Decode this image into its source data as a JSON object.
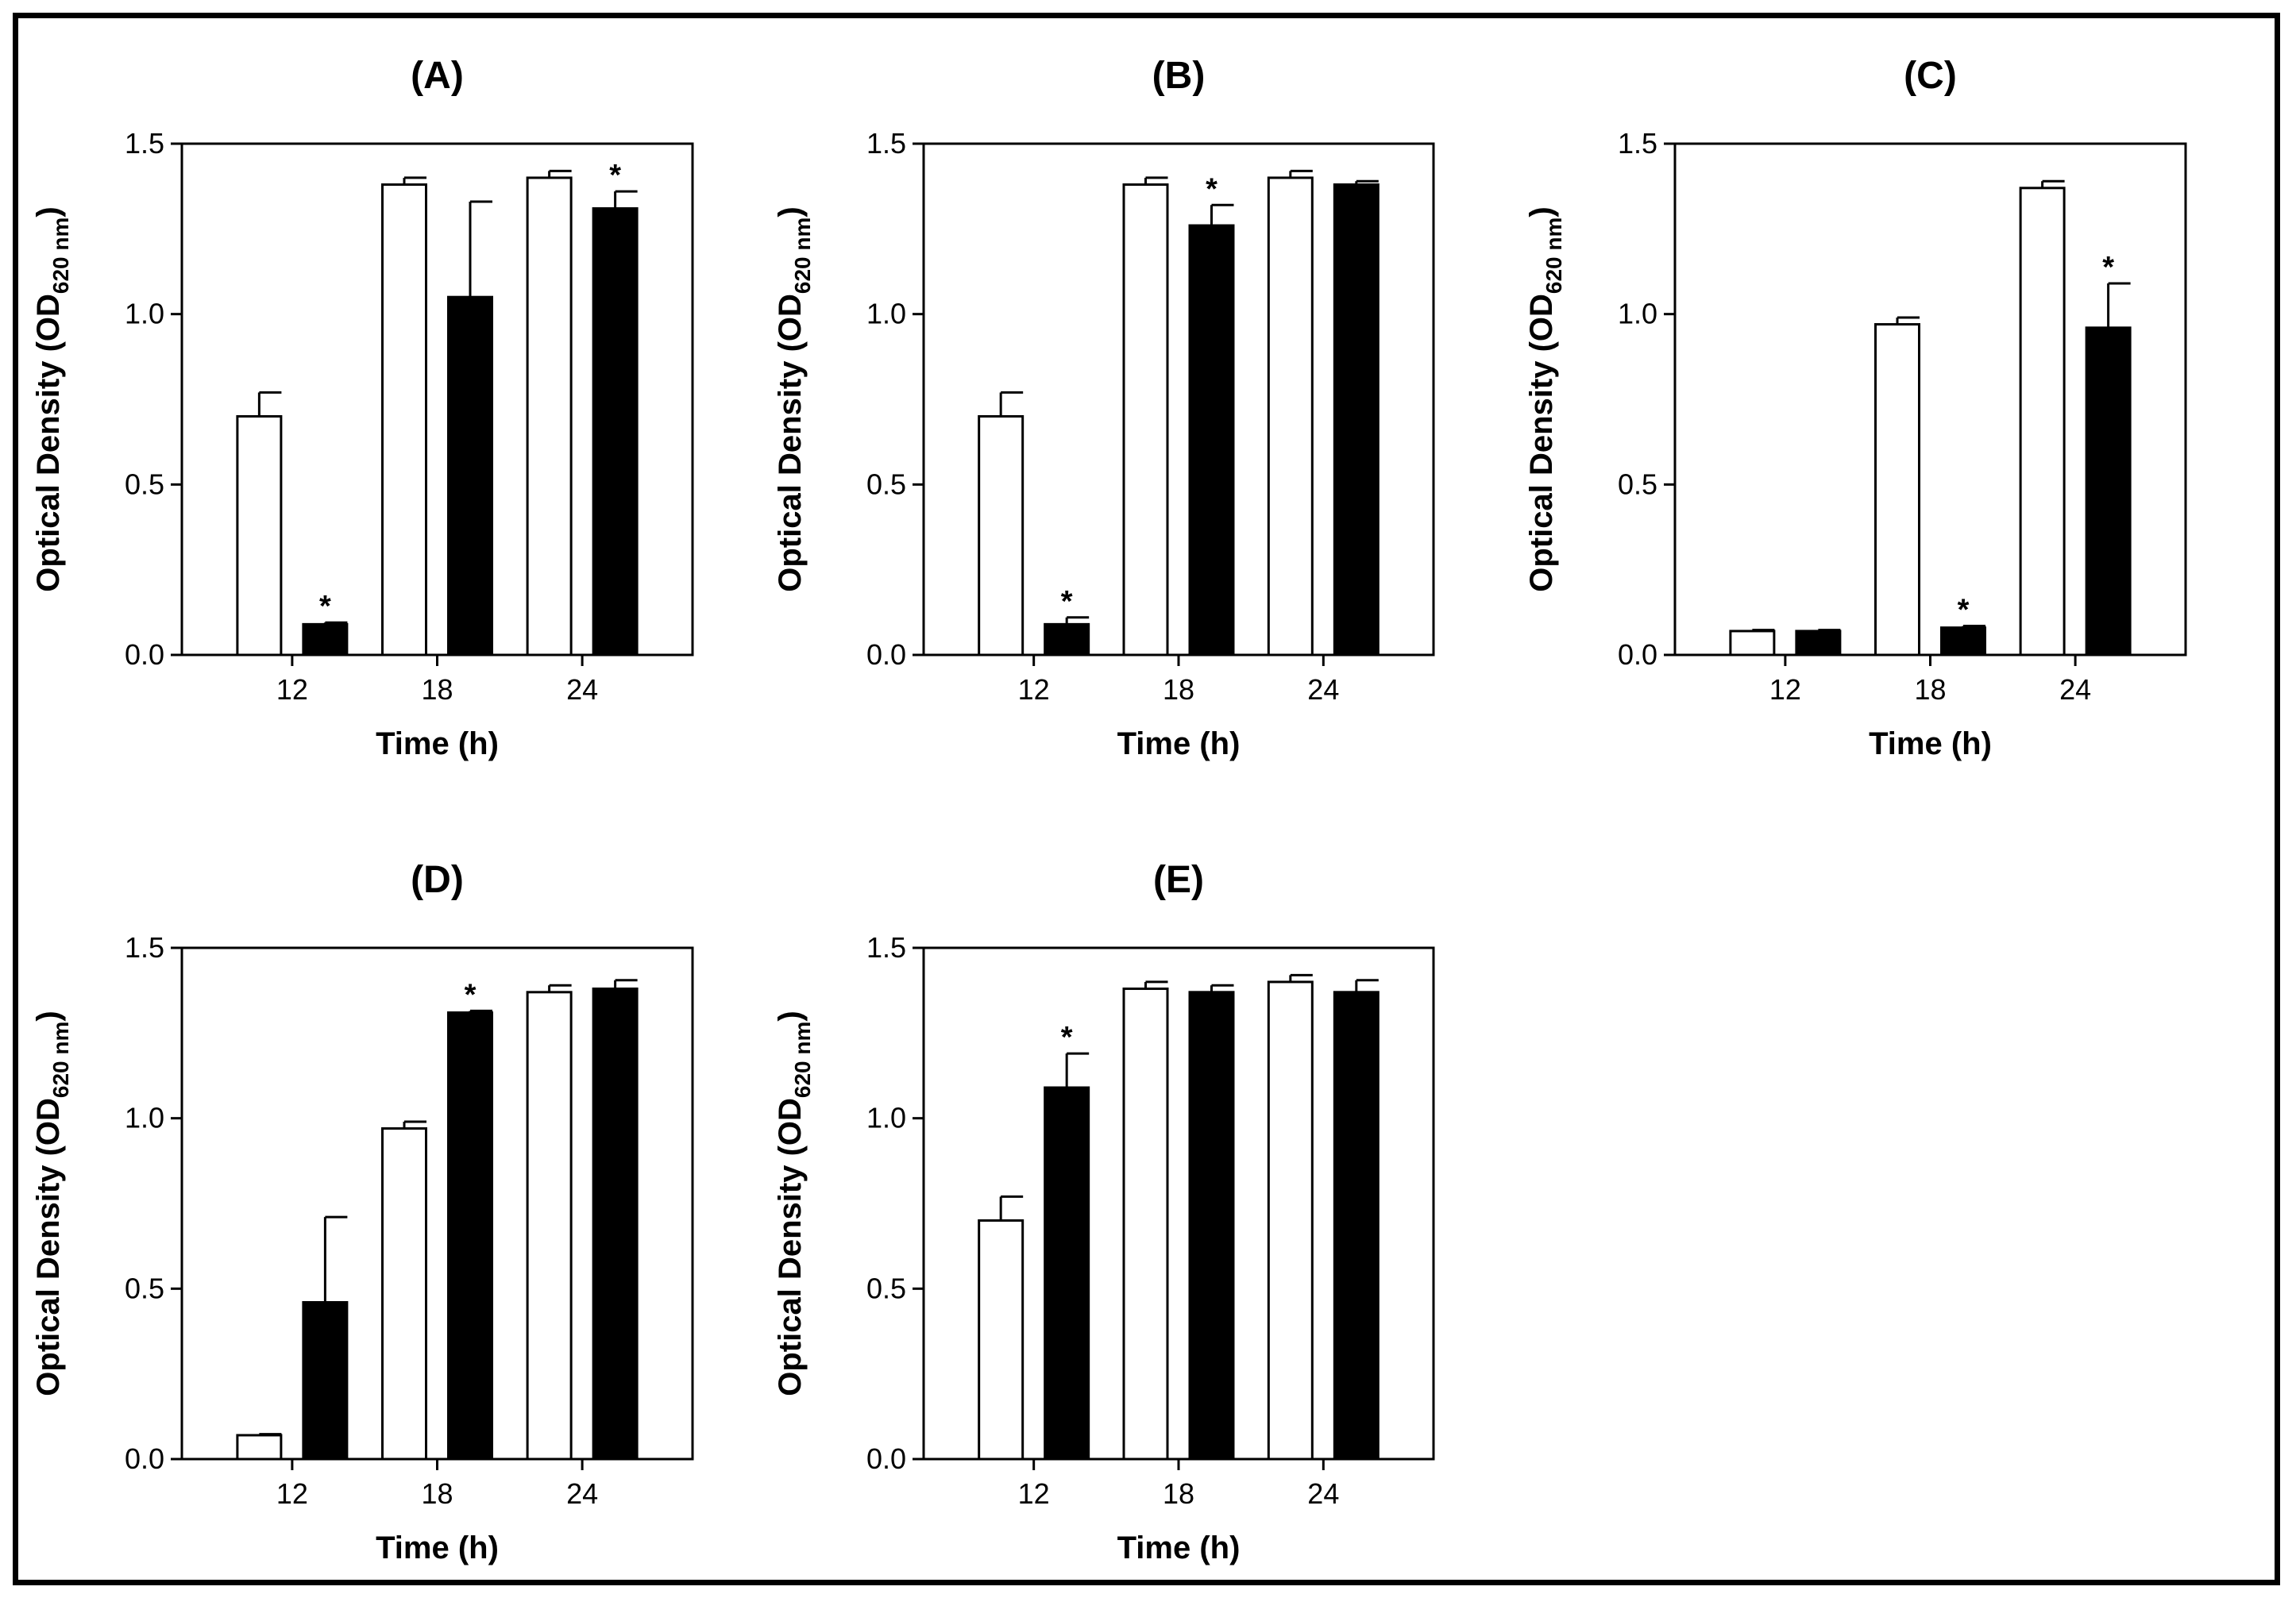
{
  "chart_data": [
    {
      "type": "bar",
      "title": "(A)",
      "categories": [
        "12",
        "18",
        "24"
      ],
      "series": [
        {
          "name": "open",
          "values": [
            0.7,
            1.38,
            1.4
          ],
          "errors": [
            0.07,
            0.02,
            0.02
          ]
        },
        {
          "name": "filled",
          "values": [
            0.09,
            1.05,
            1.31
          ],
          "errors": [
            0.005,
            0.28,
            0.05
          ]
        }
      ],
      "significant": [
        [
          false,
          false,
          false
        ],
        [
          true,
          false,
          true
        ]
      ],
      "xlabel": "Time (h)",
      "ylabel_main": "Optical Density (OD",
      "ylabel_sub": "620 nm",
      "ylabel_close": ")",
      "ylim": [
        0,
        1.5
      ],
      "yticks": [
        "0.0",
        "0.5",
        "1.0",
        "1.5"
      ]
    },
    {
      "type": "bar",
      "title": "(B)",
      "categories": [
        "12",
        "18",
        "24"
      ],
      "series": [
        {
          "name": "open",
          "values": [
            0.7,
            1.38,
            1.4
          ],
          "errors": [
            0.07,
            0.02,
            0.02
          ]
        },
        {
          "name": "filled",
          "values": [
            0.09,
            1.26,
            1.38
          ],
          "errors": [
            0.02,
            0.06,
            0.01
          ]
        }
      ],
      "significant": [
        [
          false,
          false,
          false
        ],
        [
          true,
          true,
          false
        ]
      ],
      "xlabel": "Time (h)",
      "ylabel_main": "Optical Density (OD",
      "ylabel_sub": "620 nm",
      "ylabel_close": ")",
      "ylim": [
        0,
        1.5
      ],
      "yticks": [
        "0.0",
        "0.5",
        "1.0",
        "1.5"
      ]
    },
    {
      "type": "bar",
      "title": "(C)",
      "categories": [
        "12",
        "18",
        "24"
      ],
      "series": [
        {
          "name": "open",
          "values": [
            0.07,
            0.97,
            1.37
          ],
          "errors": [
            0.003,
            0.02,
            0.02
          ]
        },
        {
          "name": "filled",
          "values": [
            0.07,
            0.08,
            0.96
          ],
          "errors": [
            0.003,
            0.005,
            0.13
          ]
        }
      ],
      "significant": [
        [
          false,
          false,
          false
        ],
        [
          false,
          true,
          true
        ]
      ],
      "xlabel": "Time (h)",
      "ylabel_main": "Optical Density (OD",
      "ylabel_sub": "620 nm",
      "ylabel_close": ")",
      "ylim": [
        0,
        1.5
      ],
      "yticks": [
        "0.0",
        "0.5",
        "1.0",
        "1.5"
      ]
    },
    {
      "type": "bar",
      "title": "(D)",
      "categories": [
        "12",
        "18",
        "24"
      ],
      "series": [
        {
          "name": "open",
          "values": [
            0.07,
            0.97,
            1.37
          ],
          "errors": [
            0.003,
            0.02,
            0.02
          ]
        },
        {
          "name": "filled",
          "values": [
            0.46,
            1.31,
            1.38
          ],
          "errors": [
            0.25,
            0.005,
            0.025
          ]
        }
      ],
      "significant": [
        [
          false,
          false,
          false
        ],
        [
          false,
          true,
          false
        ]
      ],
      "xlabel": "Time (h)",
      "ylabel_main": "Optical Density (OD",
      "ylabel_sub": "620 nm",
      "ylabel_close": ")",
      "ylim": [
        0,
        1.5
      ],
      "yticks": [
        "0.0",
        "0.5",
        "1.0",
        "1.5"
      ]
    },
    {
      "type": "bar",
      "title": "(E)",
      "categories": [
        "12",
        "18",
        "24"
      ],
      "series": [
        {
          "name": "open",
          "values": [
            0.7,
            1.38,
            1.4
          ],
          "errors": [
            0.07,
            0.02,
            0.02
          ]
        },
        {
          "name": "filled",
          "values": [
            1.09,
            1.37,
            1.37
          ],
          "errors": [
            0.1,
            0.02,
            0.035
          ]
        }
      ],
      "significant": [
        [
          false,
          false,
          false
        ],
        [
          true,
          false,
          false
        ]
      ],
      "xlabel": "Time (h)",
      "ylabel_main": "Optical Density (OD",
      "ylabel_sub": "620 nm",
      "ylabel_close": ")",
      "ylim": [
        0,
        1.5
      ],
      "yticks": [
        "0.0",
        "0.5",
        "1.0",
        "1.5"
      ]
    }
  ],
  "star_symbol": "*"
}
